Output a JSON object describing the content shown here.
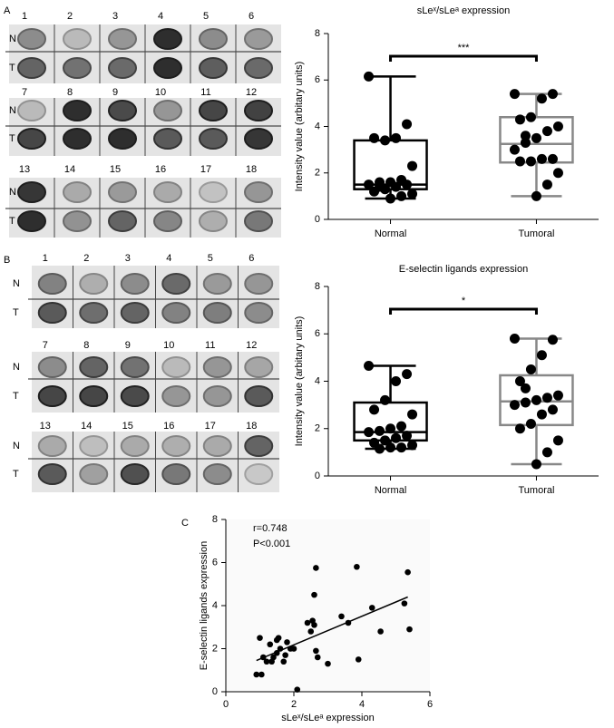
{
  "figure": {
    "panel_labels": [
      "A",
      "B",
      "C"
    ],
    "row_labels": [
      "N",
      "T"
    ],
    "sample_numbers": [
      "1",
      "2",
      "3",
      "4",
      "5",
      "6",
      "7",
      "8",
      "9",
      "10",
      "11",
      "12",
      "13",
      "14",
      "15",
      "16",
      "17",
      "18"
    ]
  },
  "chart_data": [
    {
      "type": "box",
      "title": "sLeˣ/sLeᵃ expression",
      "y_label": "Intensity value (arbitary units)",
      "categories": [
        "Normal",
        "Tumoral"
      ],
      "ylim": [
        0,
        8
      ],
      "yticks": [
        0,
        2,
        4,
        6,
        8
      ],
      "annotation": "***",
      "boxes": [
        {
          "color": "#000000",
          "min": 0.9,
          "q1": 1.3,
          "median": 1.5,
          "q3": 3.4,
          "max": 6.15,
          "values": [
            6.15,
            4.1,
            3.5,
            3.4,
            3.5,
            2.3,
            1.7,
            1.6,
            1.6,
            1.5,
            1.5,
            1.4,
            1.3,
            1.2,
            1.1,
            1.0,
            0.9,
            1.4
          ]
        },
        {
          "color": "#888888",
          "min": 1.0,
          "q1": 2.45,
          "median": 3.25,
          "q3": 4.4,
          "max": 5.4,
          "values": [
            5.4,
            5.4,
            5.2,
            4.4,
            4.3,
            4.0,
            3.8,
            3.5,
            3.3,
            3.0,
            2.6,
            2.6,
            2.5,
            2.5,
            2.0,
            1.5,
            1.0,
            3.6
          ]
        }
      ]
    },
    {
      "type": "box",
      "title": "E-selectin ligands expression",
      "y_label": "Intensity value (arbitary units)",
      "categories": [
        "Normal",
        "Tumoral"
      ],
      "ylim": [
        0,
        8
      ],
      "yticks": [
        0,
        2,
        4,
        6,
        8
      ],
      "annotation": "*",
      "boxes": [
        {
          "color": "#000000",
          "min": 1.15,
          "q1": 1.5,
          "median": 1.85,
          "q3": 3.1,
          "max": 4.65,
          "values": [
            4.65,
            4.3,
            4.0,
            3.2,
            2.8,
            2.6,
            2.1,
            2.0,
            1.9,
            1.85,
            1.7,
            1.6,
            1.5,
            1.4,
            1.3,
            1.2,
            1.2,
            1.15
          ]
        },
        {
          "color": "#888888",
          "min": 0.5,
          "q1": 2.15,
          "median": 3.15,
          "q3": 4.25,
          "max": 5.8,
          "values": [
            5.8,
            5.75,
            5.1,
            4.5,
            4.0,
            3.4,
            3.3,
            3.2,
            3.1,
            3.0,
            2.8,
            2.6,
            2.2,
            2.0,
            1.5,
            1.0,
            0.5,
            3.7
          ]
        }
      ]
    },
    {
      "type": "scatter",
      "x_label": "sLeˣ/sLeᵃ expression",
      "y_label": "E-selectin ligands expression",
      "annotations": [
        "r=0.748",
        "P<0.001"
      ],
      "xlim": [
        0,
        6
      ],
      "ylim": [
        0,
        8
      ],
      "xticks": [
        0,
        2,
        4,
        6
      ],
      "yticks": [
        0,
        2,
        4,
        6,
        8
      ],
      "color": "#000000",
      "x": [
        0.9,
        1.0,
        1.05,
        1.1,
        1.2,
        1.3,
        1.35,
        1.4,
        1.5,
        1.5,
        1.55,
        1.6,
        1.7,
        1.75,
        1.8,
        1.9,
        2.0,
        2.1,
        2.4,
        2.5,
        2.55,
        2.6,
        2.6,
        2.65,
        2.65,
        2.7,
        3.0,
        3.4,
        3.6,
        3.85,
        3.9,
        4.3,
        4.55,
        5.25,
        5.35,
        5.4
      ],
      "y": [
        0.8,
        2.5,
        0.8,
        1.6,
        1.4,
        2.2,
        1.4,
        1.6,
        1.8,
        2.4,
        2.5,
        2.0,
        1.4,
        1.7,
        2.3,
        2.0,
        2.0,
        0.1,
        3.2,
        2.8,
        3.3,
        3.1,
        4.5,
        5.75,
        1.9,
        1.6,
        1.3,
        3.5,
        3.2,
        5.8,
        1.5,
        3.9,
        2.8,
        4.1,
        5.55,
        2.9
      ],
      "fit": {
        "x": [
          0.9,
          5.35
        ],
        "y": [
          1.45,
          4.4
        ]
      }
    }
  ]
}
